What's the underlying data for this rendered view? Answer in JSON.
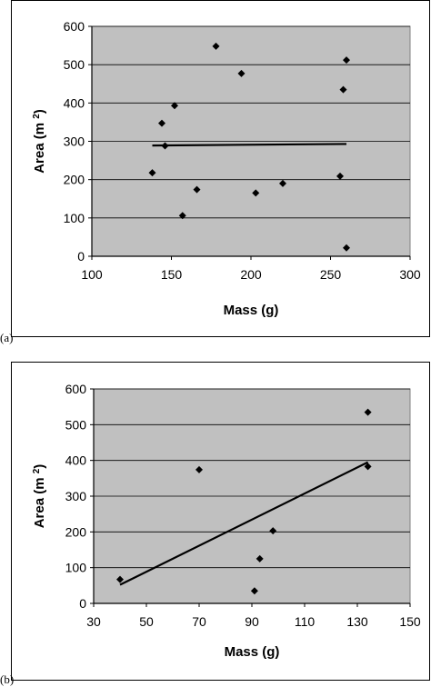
{
  "panels": [
    {
      "letter": "(a)"
    },
    {
      "letter": "(b)"
    }
  ],
  "chart_data": [
    {
      "type": "scatter",
      "title": "",
      "xlabel": "Mass (g)",
      "ylabel": "Area (m 2)",
      "ylabel_main": "Area (m",
      "ylabel_sup": "2",
      "ylabel_end": ")",
      "xlim": [
        100,
        300
      ],
      "ylim": [
        0,
        600
      ],
      "xticks": [
        "100",
        "150",
        "200",
        "250",
        "300"
      ],
      "yticks": [
        "0",
        "100",
        "200",
        "300",
        "400",
        "500",
        "600"
      ],
      "grid": true,
      "legend": "none",
      "plot_bg": "#c0c0c0",
      "point_color": "#000000",
      "points": [
        {
          "x": 138,
          "y": 218
        },
        {
          "x": 144,
          "y": 347
        },
        {
          "x": 146,
          "y": 288
        },
        {
          "x": 152,
          "y": 393
        },
        {
          "x": 157,
          "y": 106
        },
        {
          "x": 166,
          "y": 174
        },
        {
          "x": 178,
          "y": 548
        },
        {
          "x": 194,
          "y": 477
        },
        {
          "x": 203,
          "y": 165
        },
        {
          "x": 220,
          "y": 190
        },
        {
          "x": 256,
          "y": 209
        },
        {
          "x": 258,
          "y": 435
        },
        {
          "x": 260,
          "y": 512
        },
        {
          "x": 260,
          "y": 22
        }
      ],
      "trendline": {
        "x": [
          138,
          260
        ],
        "y": [
          289,
          293
        ]
      }
    },
    {
      "type": "scatter",
      "title": "",
      "xlabel": "Mass (g)",
      "ylabel": "Area (m 2)",
      "ylabel_main": "Area (m",
      "ylabel_sup": "2",
      "ylabel_end": ")",
      "xlim": [
        30,
        150
      ],
      "ylim": [
        0,
        600
      ],
      "xticks": [
        "30",
        "50",
        "70",
        "90",
        "110",
        "130",
        "150"
      ],
      "yticks": [
        "0",
        "100",
        "200",
        "300",
        "400",
        "500",
        "600"
      ],
      "grid": true,
      "legend": "none",
      "plot_bg": "#c0c0c0",
      "point_color": "#000000",
      "points": [
        {
          "x": 40,
          "y": 67
        },
        {
          "x": 70,
          "y": 374
        },
        {
          "x": 91,
          "y": 35
        },
        {
          "x": 93,
          "y": 125
        },
        {
          "x": 98,
          "y": 203
        },
        {
          "x": 134,
          "y": 535
        },
        {
          "x": 134,
          "y": 383
        }
      ],
      "trendline": {
        "x": [
          40,
          134
        ],
        "y": [
          52,
          395
        ]
      }
    }
  ]
}
